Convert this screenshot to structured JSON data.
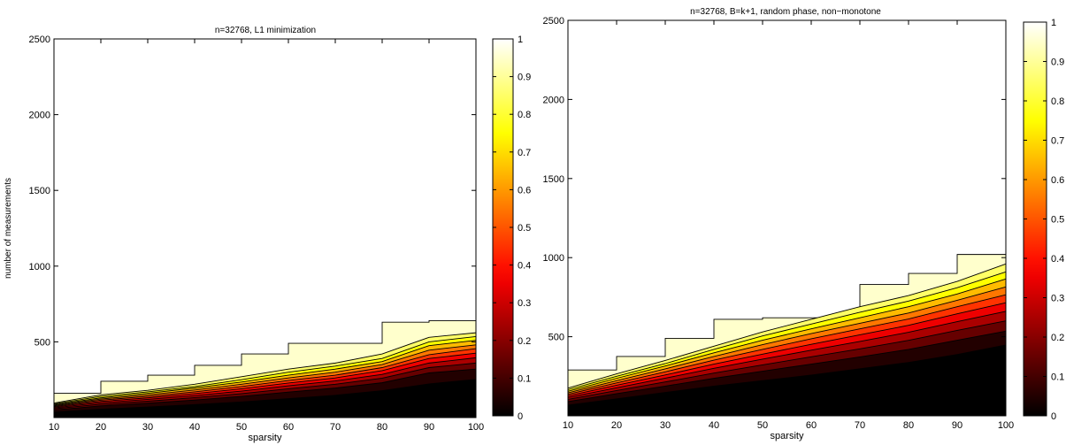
{
  "chart_data": [
    {
      "type": "heatmap",
      "title": "n=32768, L1 minimization",
      "xlabel": "sparsity",
      "ylabel": "number of measurements",
      "xlim": [
        10,
        100
      ],
      "ylim": [
        0,
        2500
      ],
      "x_ticks": [
        "10",
        "20",
        "30",
        "40",
        "50",
        "60",
        "70",
        "80",
        "90",
        "100"
      ],
      "y_ticks": [
        "500",
        "1000",
        "1500",
        "2000",
        "2500"
      ],
      "colorbar": {
        "colormap": "hot",
        "ticks": [
          "0",
          "0.1",
          "0.2",
          "0.3",
          "0.4",
          "0.5",
          "0.6",
          "0.7",
          "0.8",
          "0.9",
          "1"
        ]
      },
      "sparsity": [
        10,
        20,
        30,
        40,
        50,
        60,
        70,
        80,
        90,
        100
      ],
      "levels_measurements": {
        "1.0": [
          160,
          240,
          280,
          345,
          420,
          490,
          490,
          630,
          640,
          630
        ],
        "0.9": [
          96,
          150,
          180,
          220,
          270,
          320,
          360,
          420,
          530,
          560
        ],
        "0.8": [
          90,
          140,
          170,
          205,
          250,
          300,
          340,
          390,
          500,
          535
        ],
        "0.7": [
          85,
          130,
          160,
          195,
          235,
          280,
          320,
          370,
          475,
          510
        ],
        "0.6": [
          80,
          122,
          150,
          182,
          220,
          262,
          300,
          350,
          445,
          480
        ],
        "0.5": [
          75,
          115,
          140,
          170,
          205,
          245,
          280,
          330,
          415,
          455
        ],
        "0.4": [
          70,
          107,
          130,
          158,
          190,
          228,
          262,
          310,
          390,
          425
        ],
        "0.3": [
          64,
          98,
          120,
          145,
          175,
          210,
          242,
          285,
          360,
          395
        ],
        "0.2": [
          58,
          88,
          108,
          132,
          158,
          190,
          220,
          260,
          330,
          360
        ],
        "0.1": [
          50,
          77,
          95,
          116,
          140,
          168,
          195,
          230,
          295,
          320
        ],
        "0.0": [
          40,
          58,
          72,
          88,
          106,
          128,
          150,
          180,
          225,
          255
        ]
      }
    },
    {
      "type": "heatmap",
      "title": "n=32768, B=k+1, random phase, non−monotone",
      "xlabel": "sparsity",
      "ylabel": "",
      "xlim": [
        10,
        100
      ],
      "ylim": [
        0,
        2500
      ],
      "x_ticks": [
        "10",
        "20",
        "30",
        "40",
        "50",
        "60",
        "70",
        "80",
        "90",
        "100"
      ],
      "y_ticks": [
        "500",
        "1000",
        "1500",
        "2000",
        "2500"
      ],
      "colorbar": {
        "colormap": "hot",
        "ticks": [
          "0",
          "0.1",
          "0.2",
          "0.3",
          "0.4",
          "0.5",
          "0.6",
          "0.7",
          "0.8",
          "0.9",
          "1"
        ]
      },
      "sparsity": [
        10,
        20,
        30,
        40,
        50,
        60,
        70,
        80,
        90,
        100
      ],
      "levels_measurements": {
        "1.0": [
          290,
          375,
          490,
          610,
          620,
          620,
          830,
          900,
          1020,
          1020
        ],
        "0.9": [
          175,
          265,
          350,
          440,
          530,
          610,
          690,
          760,
          850,
          960
        ],
        "0.8": [
          165,
          250,
          330,
          420,
          505,
          580,
          655,
          725,
          810,
          910
        ],
        "0.7": [
          155,
          237,
          315,
          398,
          478,
          550,
          620,
          690,
          770,
          865
        ],
        "0.6": [
          145,
          222,
          297,
          375,
          450,
          520,
          585,
          650,
          730,
          815
        ],
        "0.5": [
          136,
          208,
          278,
          352,
          420,
          487,
          550,
          612,
          690,
          765
        ],
        "0.4": [
          126,
          193,
          258,
          327,
          390,
          452,
          512,
          572,
          645,
          715
        ],
        "0.3": [
          116,
          177,
          238,
          300,
          358,
          415,
          470,
          528,
          595,
          660
        ],
        "0.2": [
          104,
          160,
          214,
          270,
          322,
          373,
          423,
          477,
          540,
          600
        ],
        "0.1": [
          90,
          140,
          188,
          237,
          282,
          327,
          372,
          420,
          478,
          535
        ],
        "0.0": [
          70,
          110,
          150,
          190,
          225,
          260,
          300,
          340,
          390,
          450
        ]
      }
    }
  ]
}
